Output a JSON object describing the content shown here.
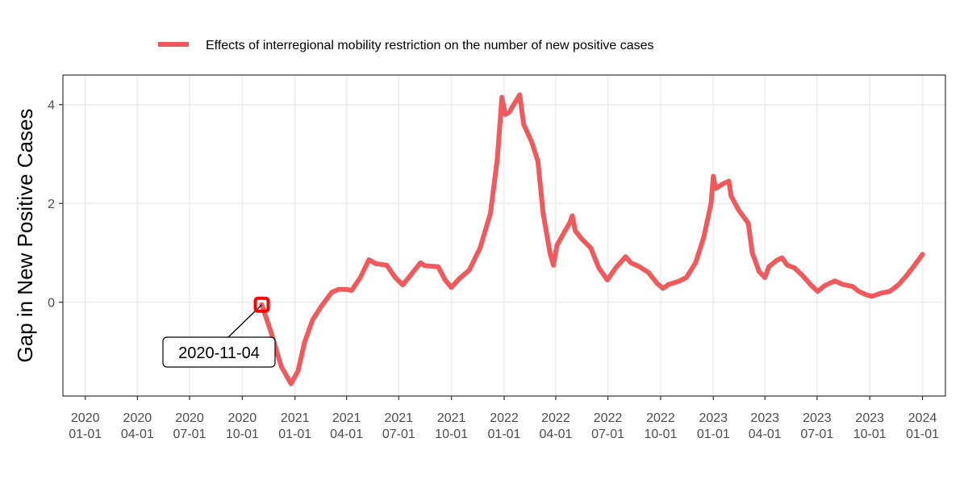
{
  "chart_data": {
    "type": "line",
    "xlabel": "",
    "ylabel": "Gap in New Positive Cases",
    "x_range": [
      "2019-11-23",
      "2024-02-10"
    ],
    "ylim": [
      -1.9,
      4.6
    ],
    "y_ticks": [
      0,
      2,
      4
    ],
    "grid": true,
    "legend_position": "top",
    "x_ticks": [
      {
        "date": "2020-01-01",
        "label": [
          "2020",
          "01-01"
        ]
      },
      {
        "date": "2020-04-01",
        "label": [
          "2020",
          "04-01"
        ]
      },
      {
        "date": "2020-07-01",
        "label": [
          "2020",
          "07-01"
        ]
      },
      {
        "date": "2020-10-01",
        "label": [
          "2020",
          "10-01"
        ]
      },
      {
        "date": "2021-01-01",
        "label": [
          "2021",
          "01-01"
        ]
      },
      {
        "date": "2021-04-01",
        "label": [
          "2021",
          "04-01"
        ]
      },
      {
        "date": "2021-07-01",
        "label": [
          "2021",
          "07-01"
        ]
      },
      {
        "date": "2021-10-01",
        "label": [
          "2021",
          "10-01"
        ]
      },
      {
        "date": "2022-01-01",
        "label": [
          "2022",
          "01-01"
        ]
      },
      {
        "date": "2022-04-01",
        "label": [
          "2022",
          "04-01"
        ]
      },
      {
        "date": "2022-07-01",
        "label": [
          "2022",
          "07-01"
        ]
      },
      {
        "date": "2022-10-01",
        "label": [
          "2022",
          "10-01"
        ]
      },
      {
        "date": "2023-01-01",
        "label": [
          "2023",
          "01-01"
        ]
      },
      {
        "date": "2023-04-01",
        "label": [
          "2023",
          "04-01"
        ]
      },
      {
        "date": "2023-07-01",
        "label": [
          "2023",
          "07-01"
        ]
      },
      {
        "date": "2023-10-01",
        "label": [
          "2023",
          "10-01"
        ]
      },
      {
        "date": "2024-01-01",
        "label": [
          "2024",
          "01-01"
        ]
      }
    ],
    "series": [
      {
        "name": "Effects of interregional mobility restriction on the number of new positive cases",
        "color": "#f05a5c",
        "points": [
          [
            "2020-11-04",
            -0.05
          ],
          [
            "2020-11-20",
            -0.6
          ],
          [
            "2020-12-08",
            -1.3
          ],
          [
            "2020-12-25",
            -1.65
          ],
          [
            "2021-01-06",
            -1.4
          ],
          [
            "2021-01-18",
            -0.8
          ],
          [
            "2021-02-01",
            -0.35
          ],
          [
            "2021-02-18",
            -0.05
          ],
          [
            "2021-03-06",
            0.2
          ],
          [
            "2021-03-18",
            0.26
          ],
          [
            "2021-03-30",
            0.26
          ],
          [
            "2021-04-10",
            0.24
          ],
          [
            "2021-04-25",
            0.5
          ],
          [
            "2021-05-10",
            0.86
          ],
          [
            "2021-05-22",
            0.78
          ],
          [
            "2021-06-10",
            0.75
          ],
          [
            "2021-06-25",
            0.5
          ],
          [
            "2021-07-08",
            0.35
          ],
          [
            "2021-07-22",
            0.55
          ],
          [
            "2021-08-08",
            0.8
          ],
          [
            "2021-08-15",
            0.74
          ],
          [
            "2021-09-08",
            0.72
          ],
          [
            "2021-09-20",
            0.45
          ],
          [
            "2021-10-01",
            0.3
          ],
          [
            "2021-10-15",
            0.48
          ],
          [
            "2021-11-01",
            0.65
          ],
          [
            "2021-11-20",
            1.1
          ],
          [
            "2021-12-08",
            1.8
          ],
          [
            "2021-12-20",
            2.9
          ],
          [
            "2021-12-28",
            4.15
          ],
          [
            "2022-01-03",
            3.8
          ],
          [
            "2022-01-10",
            3.85
          ],
          [
            "2022-01-28",
            4.2
          ],
          [
            "2022-02-04",
            3.6
          ],
          [
            "2022-02-18",
            3.25
          ],
          [
            "2022-03-01",
            2.85
          ],
          [
            "2022-03-10",
            1.8
          ],
          [
            "2022-03-22",
            1.0
          ],
          [
            "2022-03-28",
            0.75
          ],
          [
            "2022-04-03",
            1.15
          ],
          [
            "2022-04-15",
            1.4
          ],
          [
            "2022-04-25",
            1.6
          ],
          [
            "2022-04-30",
            1.75
          ],
          [
            "2022-05-05",
            1.45
          ],
          [
            "2022-05-15",
            1.3
          ],
          [
            "2022-06-01",
            1.1
          ],
          [
            "2022-06-15",
            0.7
          ],
          [
            "2022-06-30",
            0.45
          ],
          [
            "2022-07-15",
            0.7
          ],
          [
            "2022-08-01",
            0.92
          ],
          [
            "2022-08-10",
            0.8
          ],
          [
            "2022-08-25",
            0.72
          ],
          [
            "2022-09-10",
            0.6
          ],
          [
            "2022-09-25",
            0.38
          ],
          [
            "2022-10-05",
            0.28
          ],
          [
            "2022-10-15",
            0.36
          ],
          [
            "2022-11-01",
            0.42
          ],
          [
            "2022-11-15",
            0.5
          ],
          [
            "2022-12-01",
            0.8
          ],
          [
            "2022-12-15",
            1.3
          ],
          [
            "2022-12-28",
            2.0
          ],
          [
            "2023-01-01",
            2.55
          ],
          [
            "2023-01-05",
            2.3
          ],
          [
            "2023-01-18",
            2.4
          ],
          [
            "2023-01-28",
            2.45
          ],
          [
            "2023-02-01",
            2.15
          ],
          [
            "2023-02-15",
            1.85
          ],
          [
            "2023-03-03",
            1.6
          ],
          [
            "2023-03-10",
            1.0
          ],
          [
            "2023-03-22",
            0.62
          ],
          [
            "2023-04-01",
            0.5
          ],
          [
            "2023-04-08",
            0.72
          ],
          [
            "2023-04-22",
            0.85
          ],
          [
            "2023-05-01",
            0.9
          ],
          [
            "2023-05-10",
            0.75
          ],
          [
            "2023-05-22",
            0.7
          ],
          [
            "2023-06-05",
            0.55
          ],
          [
            "2023-06-20",
            0.35
          ],
          [
            "2023-07-02",
            0.22
          ],
          [
            "2023-07-15",
            0.34
          ],
          [
            "2023-08-01",
            0.43
          ],
          [
            "2023-08-15",
            0.36
          ],
          [
            "2023-09-01",
            0.32
          ],
          [
            "2023-09-12",
            0.22
          ],
          [
            "2023-09-25",
            0.15
          ],
          [
            "2023-10-05",
            0.12
          ],
          [
            "2023-10-20",
            0.18
          ],
          [
            "2023-11-05",
            0.22
          ],
          [
            "2023-11-20",
            0.35
          ],
          [
            "2023-12-05",
            0.55
          ],
          [
            "2023-12-20",
            0.78
          ],
          [
            "2024-01-01",
            0.97
          ]
        ]
      }
    ],
    "annotation": {
      "label": "2020-11-04",
      "date": "2020-11-04",
      "value": -0.05,
      "marker_color": "#ff0000"
    }
  }
}
